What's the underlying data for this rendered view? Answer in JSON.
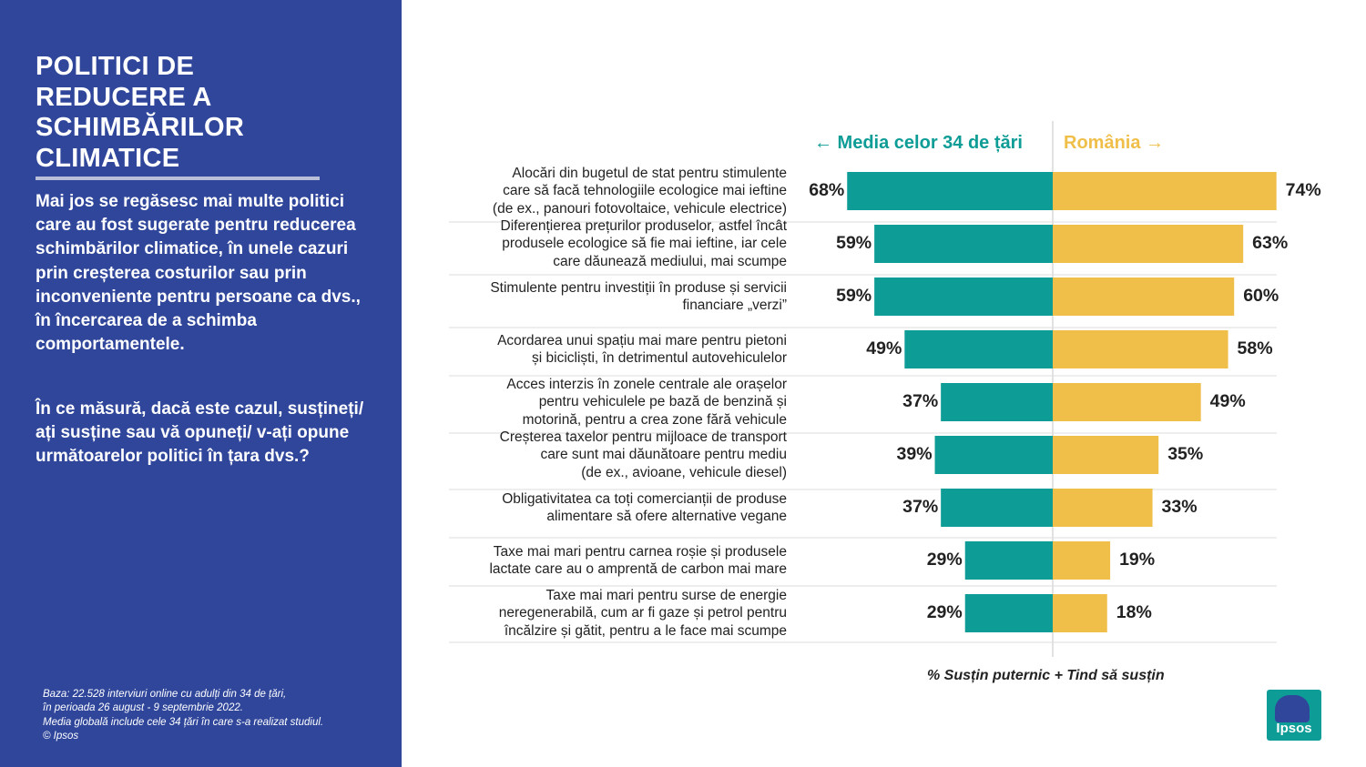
{
  "left_panel": {
    "title": "POLITICI DE\nREDUCERE A\nSCHIMBĂRILOR\nCLIMATICE",
    "intro": "Mai jos se regăsesc mai multe politici care au fost sugerate pentru reducerea schimbărilor climatice, în unele cazuri prin creșterea costurilor sau prin inconveniente pentru persoane ca dvs., în încercarea de a schimba comportamentele.",
    "question": "În ce măsură, dacă este cazul, susțineți/ ați susține sau vă opuneți/ v-ați opune următoarelor politici în țara dvs.?",
    "footnote": [
      "Baza: 22.528 interviuri online cu adulți din 34 de țări,",
      "în perioada 26 august - 9 septembrie 2022.",
      "Media globală include cele 34 țări în care s-a realizat studiul.",
      "© Ipsos"
    ],
    "colors": {
      "background": "#2f469b",
      "text": "#ffffff"
    }
  },
  "chart_data": {
    "type": "bar",
    "orientation": "diverging-horizontal",
    "legend": {
      "left": "← Media celor 34 de țări",
      "right": "România →"
    },
    "x_note": "% Susțin puternic + Tind să susțin",
    "categories": [
      "Alocări din bugetul de stat pentru stimulente care să facă tehnologiile ecologice mai ieftine (de ex., panouri fotovoltaice, vehicule electrice)",
      "Diferențierea prețurilor produselor, astfel încât produsele ecologice să fie mai ieftine, iar cele care dăunează mediului, mai scumpe",
      "Stimulente pentru investiții în produse și servicii financiare „verzi”",
      "Acordarea unui spațiu mai mare pentru pietoni și bicicliști, în detrimentul autovehiculelor",
      "Acces interzis în zonele centrale ale orașelor pentru vehiculele pe bază de benzină și motorină, pentru a crea zone fără vehicule",
      "Creșterea taxelor pentru mijloace de transport care sunt mai dăunătoare pentru mediu (de ex., avioane, vehicule diesel)",
      "Obligativitatea ca toți comercianții de produse alimentare să ofere alternative vegane",
      "Taxe mai mari pentru carnea roșie și produsele lactate care au o amprentă de carbon mai mare",
      "Taxe mai mari pentru surse de energie neregenerabilă, cum ar fi gaze și petrol pentru încălzire și gătit, pentru a le face mai scumpe"
    ],
    "series": [
      {
        "name": "Media celor 34 de țări",
        "values": [
          68,
          59,
          59,
          49,
          37,
          39,
          37,
          29,
          29
        ],
        "color": "#0e9c96"
      },
      {
        "name": "România",
        "values": [
          74,
          63,
          60,
          58,
          49,
          35,
          33,
          19,
          18
        ],
        "color": "#efbf4a"
      }
    ],
    "value_suffix": "%",
    "xlim": [
      0,
      100
    ]
  },
  "logo": {
    "text": "Ipsos"
  }
}
